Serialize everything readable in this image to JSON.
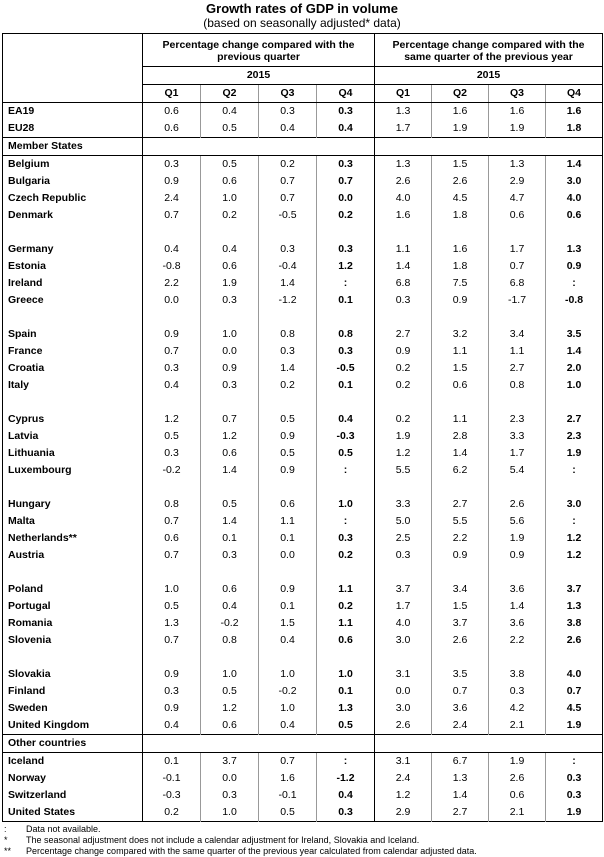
{
  "title": "Growth rates of GDP in volume",
  "subtitle": "(based on seasonally adjusted* data)",
  "header": {
    "group1": "Percentage change compared with the previous quarter",
    "group2": "Percentage change compared with the same quarter of the previous year",
    "year1": "2015",
    "year2": "2015",
    "quarters": [
      "Q1",
      "Q2",
      "Q3",
      "Q4"
    ]
  },
  "aggregates": [
    {
      "name": "EA19",
      "qoq": [
        "0.6",
        "0.4",
        "0.3",
        "0.3"
      ],
      "yoy": [
        "1.3",
        "1.6",
        "1.6",
        "1.6"
      ]
    },
    {
      "name": "EU28",
      "qoq": [
        "0.6",
        "0.5",
        "0.4",
        "0.4"
      ],
      "yoy": [
        "1.7",
        "1.9",
        "1.9",
        "1.8"
      ]
    }
  ],
  "member_states_label": "Member States",
  "member_groups": [
    [
      {
        "name": "Belgium",
        "qoq": [
          "0.3",
          "0.5",
          "0.2",
          "0.3"
        ],
        "yoy": [
          "1.3",
          "1.5",
          "1.3",
          "1.4"
        ]
      },
      {
        "name": "Bulgaria",
        "qoq": [
          "0.9",
          "0.6",
          "0.7",
          "0.7"
        ],
        "yoy": [
          "2.6",
          "2.6",
          "2.9",
          "3.0"
        ]
      },
      {
        "name": "Czech Republic",
        "qoq": [
          "2.4",
          "1.0",
          "0.7",
          "0.0"
        ],
        "yoy": [
          "4.0",
          "4.5",
          "4.7",
          "4.0"
        ]
      },
      {
        "name": "Denmark",
        "qoq": [
          "0.7",
          "0.2",
          "-0.5",
          "0.2"
        ],
        "yoy": [
          "1.6",
          "1.8",
          "0.6",
          "0.6"
        ]
      }
    ],
    [
      {
        "name": "Germany",
        "qoq": [
          "0.4",
          "0.4",
          "0.3",
          "0.3"
        ],
        "yoy": [
          "1.1",
          "1.6",
          "1.7",
          "1.3"
        ]
      },
      {
        "name": "Estonia",
        "qoq": [
          "-0.8",
          "0.6",
          "-0.4",
          "1.2"
        ],
        "yoy": [
          "1.4",
          "1.8",
          "0.7",
          "0.9"
        ]
      },
      {
        "name": "Ireland",
        "qoq": [
          "2.2",
          "1.9",
          "1.4",
          ":"
        ],
        "yoy": [
          "6.8",
          "7.5",
          "6.8",
          ":"
        ]
      },
      {
        "name": "Greece",
        "qoq": [
          "0.0",
          "0.3",
          "-1.2",
          "0.1"
        ],
        "yoy": [
          "0.3",
          "0.9",
          "-1.7",
          "-0.8"
        ]
      }
    ],
    [
      {
        "name": "Spain",
        "qoq": [
          "0.9",
          "1.0",
          "0.8",
          "0.8"
        ],
        "yoy": [
          "2.7",
          "3.2",
          "3.4",
          "3.5"
        ]
      },
      {
        "name": "France",
        "qoq": [
          "0.7",
          "0.0",
          "0.3",
          "0.3"
        ],
        "yoy": [
          "0.9",
          "1.1",
          "1.1",
          "1.4"
        ]
      },
      {
        "name": "Croatia",
        "qoq": [
          "0.3",
          "0.9",
          "1.4",
          "-0.5"
        ],
        "yoy": [
          "0.2",
          "1.5",
          "2.7",
          "2.0"
        ]
      },
      {
        "name": "Italy",
        "qoq": [
          "0.4",
          "0.3",
          "0.2",
          "0.1"
        ],
        "yoy": [
          "0.2",
          "0.6",
          "0.8",
          "1.0"
        ]
      }
    ],
    [
      {
        "name": "Cyprus",
        "qoq": [
          "1.2",
          "0.7",
          "0.5",
          "0.4"
        ],
        "yoy": [
          "0.2",
          "1.1",
          "2.3",
          "2.7"
        ]
      },
      {
        "name": "Latvia",
        "qoq": [
          "0.5",
          "1.2",
          "0.9",
          "-0.3"
        ],
        "yoy": [
          "1.9",
          "2.8",
          "3.3",
          "2.3"
        ]
      },
      {
        "name": "Lithuania",
        "qoq": [
          "0.3",
          "0.6",
          "0.5",
          "0.5"
        ],
        "yoy": [
          "1.2",
          "1.4",
          "1.7",
          "1.9"
        ]
      },
      {
        "name": "Luxembourg",
        "qoq": [
          "-0.2",
          "1.4",
          "0.9",
          ":"
        ],
        "yoy": [
          "5.5",
          "6.2",
          "5.4",
          ":"
        ]
      }
    ],
    [
      {
        "name": "Hungary",
        "qoq": [
          "0.8",
          "0.5",
          "0.6",
          "1.0"
        ],
        "yoy": [
          "3.3",
          "2.7",
          "2.6",
          "3.0"
        ]
      },
      {
        "name": "Malta",
        "qoq": [
          "0.7",
          "1.4",
          "1.1",
          ":"
        ],
        "yoy": [
          "5.0",
          "5.5",
          "5.6",
          ":"
        ]
      },
      {
        "name": "Netherlands**",
        "qoq": [
          "0.6",
          "0.1",
          "0.1",
          "0.3"
        ],
        "yoy": [
          "2.5",
          "2.2",
          "1.9",
          "1.2"
        ]
      },
      {
        "name": "Austria",
        "qoq": [
          "0.7",
          "0.3",
          "0.0",
          "0.2"
        ],
        "yoy": [
          "0.3",
          "0.9",
          "0.9",
          "1.2"
        ]
      }
    ],
    [
      {
        "name": "Poland",
        "qoq": [
          "1.0",
          "0.6",
          "0.9",
          "1.1"
        ],
        "yoy": [
          "3.7",
          "3.4",
          "3.6",
          "3.7"
        ]
      },
      {
        "name": "Portugal",
        "qoq": [
          "0.5",
          "0.4",
          "0.1",
          "0.2"
        ],
        "yoy": [
          "1.7",
          "1.5",
          "1.4",
          "1.3"
        ]
      },
      {
        "name": "Romania",
        "qoq": [
          "1.3",
          "-0.2",
          "1.5",
          "1.1"
        ],
        "yoy": [
          "4.0",
          "3.7",
          "3.6",
          "3.8"
        ]
      },
      {
        "name": "Slovenia",
        "qoq": [
          "0.7",
          "0.8",
          "0.4",
          "0.6"
        ],
        "yoy": [
          "3.0",
          "2.6",
          "2.2",
          "2.6"
        ]
      }
    ],
    [
      {
        "name": "Slovakia",
        "qoq": [
          "0.9",
          "1.0",
          "1.0",
          "1.0"
        ],
        "yoy": [
          "3.1",
          "3.5",
          "3.8",
          "4.0"
        ]
      },
      {
        "name": "Finland",
        "qoq": [
          "0.3",
          "0.5",
          "-0.2",
          "0.1"
        ],
        "yoy": [
          "0.0",
          "0.7",
          "0.3",
          "0.7"
        ]
      },
      {
        "name": "Sweden",
        "qoq": [
          "0.9",
          "1.2",
          "1.0",
          "1.3"
        ],
        "yoy": [
          "3.0",
          "3.6",
          "4.2",
          "4.5"
        ]
      },
      {
        "name": "United Kingdom",
        "qoq": [
          "0.4",
          "0.6",
          "0.4",
          "0.5"
        ],
        "yoy": [
          "2.6",
          "2.4",
          "2.1",
          "1.9"
        ]
      }
    ]
  ],
  "other_countries_label": "Other countries",
  "other_countries": [
    {
      "name": "Iceland",
      "qoq": [
        "0.1",
        "3.7",
        "0.7",
        ":"
      ],
      "yoy": [
        "3.1",
        "6.7",
        "1.9",
        ":"
      ]
    },
    {
      "name": "Norway",
      "qoq": [
        "-0.1",
        "0.0",
        "1.6",
        "-1.2"
      ],
      "yoy": [
        "2.4",
        "1.3",
        "2.6",
        "0.3"
      ]
    },
    {
      "name": "Switzerland",
      "qoq": [
        "-0.3",
        "0.3",
        "-0.1",
        "0.4"
      ],
      "yoy": [
        "1.2",
        "1.4",
        "0.6",
        "0.3"
      ]
    },
    {
      "name": "United States",
      "qoq": [
        "0.2",
        "1.0",
        "0.5",
        "0.3"
      ],
      "yoy": [
        "2.9",
        "2.7",
        "2.1",
        "1.9"
      ]
    }
  ],
  "footnotes": [
    {
      "symbol": ":",
      "text": "Data not available."
    },
    {
      "symbol": "*",
      "text": "The seasonal adjustment does not include a calendar adjustment for Ireland, Slovakia and Iceland."
    },
    {
      "symbol": "**",
      "text": "Percentage change compared with the same quarter of the previous year calculated from calendar adjusted data."
    }
  ]
}
